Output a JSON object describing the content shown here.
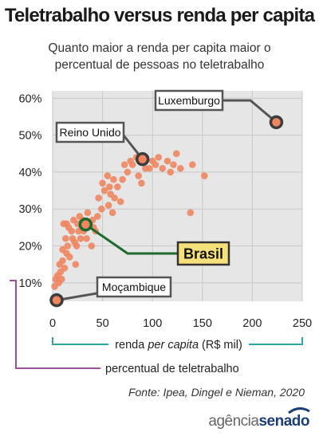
{
  "title": "Teletrabalho versus renda per capita",
  "subtitle": "Quanto maior a renda per capita maior o percentual de pessoas no teletrabalho",
  "source": "Fonte: Ipea, Dingel e Nieman, 2020",
  "logo": {
    "part1": "agência",
    "part2": "senado"
  },
  "colors": {
    "points": "#ee8660",
    "highlight_ring": "#3d3d3d",
    "brazil_ring": "#1e6a2e",
    "brazil_box": "#f6e07a",
    "x_guide": "#2aa7a7",
    "y_guide": "#9d4f98",
    "grid": "#c8c8c8",
    "plot_bg": "#e6e6e6"
  },
  "chart_data": {
    "type": "scatter",
    "xlabel_parts": [
      "renda ",
      "per capita",
      " (R$ mil)"
    ],
    "ylabel": "percentual de teletrabalho",
    "xlim": [
      0,
      250
    ],
    "ylim": [
      5,
      62
    ],
    "x_ticks": [
      0,
      50,
      100,
      150,
      200,
      250
    ],
    "y_ticks": [
      10,
      20,
      30,
      40,
      50,
      60
    ],
    "y_tick_labels": [
      "10%",
      "20%",
      "30%",
      "40%",
      "50%",
      "60%"
    ],
    "grid": true,
    "highlights": [
      {
        "label": "Luxemburgo",
        "x": 224,
        "y": 53.5
      },
      {
        "label": "Reino Unido",
        "x": 90,
        "y": 43.5
      },
      {
        "label": "Brasil",
        "x": 33,
        "y": 25.8
      },
      {
        "label": "Moçambique",
        "x": 4,
        "y": 5.3
      }
    ],
    "points": [
      [
        4,
        5.3
      ],
      [
        2,
        9
      ],
      [
        3,
        11
      ],
      [
        5,
        12
      ],
      [
        6,
        10
      ],
      [
        7,
        15
      ],
      [
        8,
        13
      ],
      [
        9,
        11
      ],
      [
        10,
        16
      ],
      [
        10,
        19
      ],
      [
        12,
        14
      ],
      [
        13,
        22
      ],
      [
        14,
        18
      ],
      [
        15,
        20
      ],
      [
        11,
        26
      ],
      [
        14,
        26
      ],
      [
        16,
        25
      ],
      [
        17,
        17
      ],
      [
        19,
        24
      ],
      [
        20,
        22
      ],
      [
        21,
        27
      ],
      [
        22,
        21
      ],
      [
        23,
        15
      ],
      [
        24,
        20
      ],
      [
        25,
        26
      ],
      [
        26,
        24
      ],
      [
        27,
        28
      ],
      [
        28,
        22
      ],
      [
        29,
        25
      ],
      [
        30,
        27
      ],
      [
        31,
        24
      ],
      [
        33,
        25.8
      ],
      [
        34,
        22
      ],
      [
        35,
        29
      ],
      [
        37,
        26
      ],
      [
        39,
        20
      ],
      [
        40,
        27
      ],
      [
        41,
        25
      ],
      [
        43,
        24
      ],
      [
        45,
        28
      ],
      [
        46,
        33
      ],
      [
        49,
        30
      ],
      [
        50,
        37
      ],
      [
        52,
        35
      ],
      [
        55,
        39
      ],
      [
        56,
        31
      ],
      [
        57,
        36
      ],
      [
        58,
        34
      ],
      [
        60,
        29
      ],
      [
        61,
        38
      ],
      [
        62,
        33
      ],
      [
        65,
        36
      ],
      [
        68,
        32
      ],
      [
        70,
        38
      ],
      [
        72,
        42
      ],
      [
        75,
        40
      ],
      [
        78,
        43
      ],
      [
        80,
        42
      ],
      [
        84,
        44
      ],
      [
        86,
        39
      ],
      [
        89,
        37
      ],
      [
        90,
        43.5
      ],
      [
        93,
        41
      ],
      [
        97,
        41
      ],
      [
        100,
        43
      ],
      [
        103,
        42
      ],
      [
        106,
        44
      ],
      [
        110,
        41
      ],
      [
        115,
        43
      ],
      [
        118,
        40
      ],
      [
        121,
        42
      ],
      [
        124,
        45
      ],
      [
        128,
        41
      ],
      [
        140,
        42
      ],
      [
        152,
        39
      ],
      [
        138,
        29
      ],
      [
        224,
        53.5
      ]
    ]
  }
}
